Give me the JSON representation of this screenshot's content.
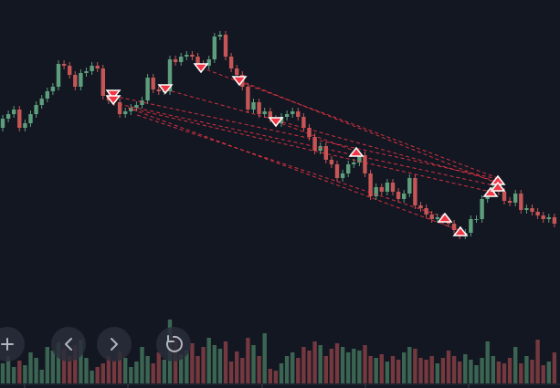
{
  "chart_data": {
    "type": "candlestick",
    "open": [
      285,
      295,
      300,
      305,
      285,
      290,
      300,
      310,
      317,
      325,
      330,
      355,
      353,
      343,
      330,
      345,
      347,
      353,
      350,
      320,
      315,
      313,
      300,
      303,
      307,
      310,
      315,
      340,
      327,
      325,
      325,
      360,
      357,
      363,
      365,
      363,
      355,
      353,
      360,
      385,
      387,
      363,
      350,
      343,
      330,
      305,
      313,
      300,
      303,
      295,
      290,
      297,
      300,
      303,
      297,
      285,
      275,
      260,
      265,
      250,
      245,
      230,
      235,
      245,
      247,
      255,
      235,
      210,
      220,
      215,
      225,
      215,
      207,
      213,
      230,
      200,
      197,
      190,
      185,
      187,
      183,
      180,
      173,
      167,
      170,
      185,
      185,
      207,
      213,
      220,
      215,
      205,
      203,
      213,
      195,
      197,
      193,
      189,
      185,
      187
    ],
    "high": [
      299,
      304,
      309,
      309,
      294,
      304,
      314,
      321,
      329,
      334,
      359,
      359,
      357,
      347,
      349,
      351,
      357,
      357,
      354,
      324,
      319,
      317,
      307,
      311,
      314,
      319,
      344,
      344,
      331,
      329,
      364,
      364,
      367,
      369,
      369,
      367,
      359,
      364,
      389,
      391,
      391,
      367,
      354,
      347,
      334,
      317,
      317,
      307,
      307,
      299,
      301,
      304,
      307,
      307,
      301,
      289,
      279,
      269,
      269,
      254,
      249,
      239,
      249,
      251,
      259,
      259,
      239,
      224,
      224,
      229,
      229,
      219,
      217,
      234,
      234,
      204,
      201,
      194,
      191,
      191,
      187,
      184,
      177,
      174,
      189,
      189,
      211,
      217,
      224,
      224,
      219,
      209,
      217,
      217,
      201,
      201,
      197,
      193,
      191,
      191
    ],
    "low": [
      281,
      291,
      296,
      281,
      281,
      286,
      296,
      306,
      313,
      321,
      326,
      349,
      339,
      326,
      326,
      341,
      343,
      346,
      316,
      311,
      309,
      296,
      296,
      299,
      303,
      306,
      311,
      323,
      321,
      321,
      321,
      353,
      353,
      359,
      359,
      351,
      349,
      349,
      356,
      381,
      359,
      346,
      339,
      326,
      301,
      301,
      296,
      296,
      291,
      286,
      286,
      293,
      296,
      293,
      281,
      271,
      256,
      256,
      246,
      241,
      226,
      226,
      231,
      241,
      243,
      231,
      206,
      206,
      211,
      211,
      211,
      203,
      203,
      209,
      196,
      193,
      186,
      181,
      181,
      179,
      176,
      169,
      163,
      163,
      166,
      181,
      181,
      203,
      209,
      211,
      201,
      199,
      199,
      191,
      191,
      189,
      185,
      181,
      181,
      176
    ],
    "close": [
      295,
      300,
      305,
      285,
      290,
      300,
      310,
      317,
      325,
      330,
      355,
      353,
      343,
      330,
      345,
      347,
      353,
      350,
      320,
      315,
      313,
      300,
      303,
      307,
      310,
      315,
      340,
      327,
      325,
      325,
      360,
      357,
      363,
      365,
      363,
      355,
      353,
      360,
      385,
      387,
      363,
      350,
      343,
      330,
      305,
      313,
      300,
      303,
      295,
      290,
      297,
      300,
      303,
      297,
      285,
      275,
      260,
      265,
      250,
      245,
      230,
      235,
      245,
      247,
      255,
      235,
      210,
      220,
      215,
      225,
      215,
      207,
      213,
      230,
      200,
      197,
      190,
      185,
      187,
      183,
      180,
      173,
      167,
      170,
      185,
      185,
      207,
      213,
      220,
      215,
      205,
      203,
      213,
      195,
      197,
      193,
      189,
      185,
      187,
      180
    ],
    "volume": [
      22,
      30,
      18,
      25,
      20,
      34,
      28,
      15,
      40,
      36,
      45,
      38,
      30,
      42,
      48,
      28,
      14,
      18,
      22,
      30,
      25,
      35,
      28,
      18,
      24,
      40,
      30,
      22,
      34,
      26,
      70,
      48,
      32,
      36,
      44,
      30,
      40,
      50,
      42,
      38,
      46,
      24,
      35,
      28,
      50,
      42,
      30,
      55,
      16,
      14,
      22,
      30,
      34,
      28,
      40,
      36,
      46,
      42,
      30,
      38,
      44,
      40,
      34,
      38,
      36,
      42,
      30,
      28,
      32,
      24,
      30,
      26,
      34,
      40,
      38,
      28,
      26,
      30,
      22,
      28,
      36,
      30,
      24,
      32,
      26,
      20,
      28,
      46,
      30,
      24,
      22,
      28,
      40,
      22,
      30,
      26,
      48,
      20,
      24,
      34
    ],
    "ylim": [
      0,
      425
    ],
    "vlim": [
      0,
      100
    ],
    "up_color": "#5d9e7c",
    "down_color": "#c65656",
    "volume_up_color": "#3b6552",
    "volume_down_color": "#74383f"
  }
}
